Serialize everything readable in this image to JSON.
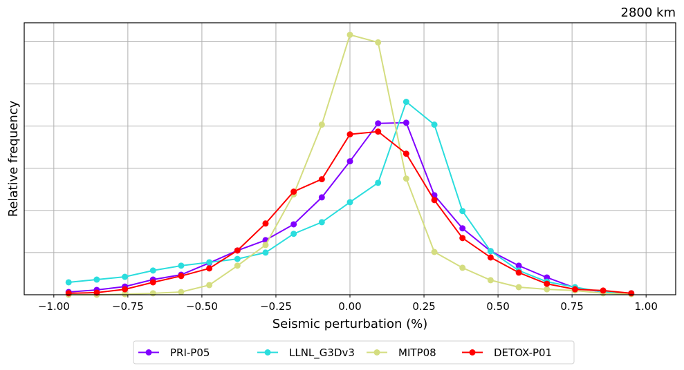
{
  "chart_data": {
    "type": "line",
    "title": "2800 km",
    "xlabel": "Seismic perturbation (%)",
    "ylabel": "Relative frequency",
    "xlim": [
      -1.1,
      1.1
    ],
    "ylim": [
      0,
      0.129
    ],
    "grid": true,
    "y_grid_step": 0.02,
    "x_ticks": [
      -1.0,
      -0.75,
      -0.5,
      -0.25,
      0.0,
      0.25,
      0.5,
      0.75,
      1.0
    ],
    "x_tick_labels": [
      "−1.00",
      "−0.75",
      "−0.50",
      "−0.25",
      "0.00",
      "0.25",
      "0.50",
      "0.75",
      "1.00"
    ],
    "y_tick_labels_shown": false,
    "legend_position": "bottom-center-outside",
    "x": [
      -0.95,
      -0.855,
      -0.76,
      -0.665,
      -0.57,
      -0.475,
      -0.38,
      -0.285,
      -0.19,
      -0.095,
      0.0,
      0.095,
      0.19,
      0.285,
      0.38,
      0.475,
      0.57,
      0.665,
      0.76,
      0.855,
      0.95
    ],
    "series": [
      {
        "name": "PRI-P05",
        "color": "#8000ff",
        "values": [
          0.0013,
          0.0023,
          0.0039,
          0.0072,
          0.0095,
          0.0151,
          0.021,
          0.0259,
          0.0334,
          0.0462,
          0.0633,
          0.0813,
          0.0816,
          0.0472,
          0.0315,
          0.0207,
          0.0138,
          0.0082,
          0.0033,
          0.0013,
          0.0007
        ]
      },
      {
        "name": "LLNL_G3Dv3",
        "color": "#2adddd",
        "values": [
          0.0059,
          0.0072,
          0.0085,
          0.0115,
          0.0138,
          0.0154,
          0.017,
          0.02,
          0.0289,
          0.0344,
          0.0439,
          0.0531,
          0.0915,
          0.0807,
          0.0397,
          0.0207,
          0.0115,
          0.0062,
          0.0036,
          0.0013,
          0.0007
        ]
      },
      {
        "name": "MITP08",
        "color": "#d4dd80",
        "values": [
          0.0,
          0.0,
          0.0003,
          0.0007,
          0.0013,
          0.0046,
          0.0138,
          0.0236,
          0.0476,
          0.0807,
          0.1233,
          0.1197,
          0.0551,
          0.0203,
          0.0128,
          0.0069,
          0.0036,
          0.0026,
          0.002,
          0.0007,
          0.0003
        ]
      },
      {
        "name": "DETOX-P01",
        "color": "#ff0000",
        "values": [
          0.0007,
          0.001,
          0.0026,
          0.0059,
          0.0089,
          0.0125,
          0.021,
          0.0338,
          0.0489,
          0.0548,
          0.0761,
          0.0774,
          0.0669,
          0.0449,
          0.0269,
          0.0177,
          0.0105,
          0.0052,
          0.0026,
          0.002,
          0.0007
        ]
      }
    ]
  }
}
